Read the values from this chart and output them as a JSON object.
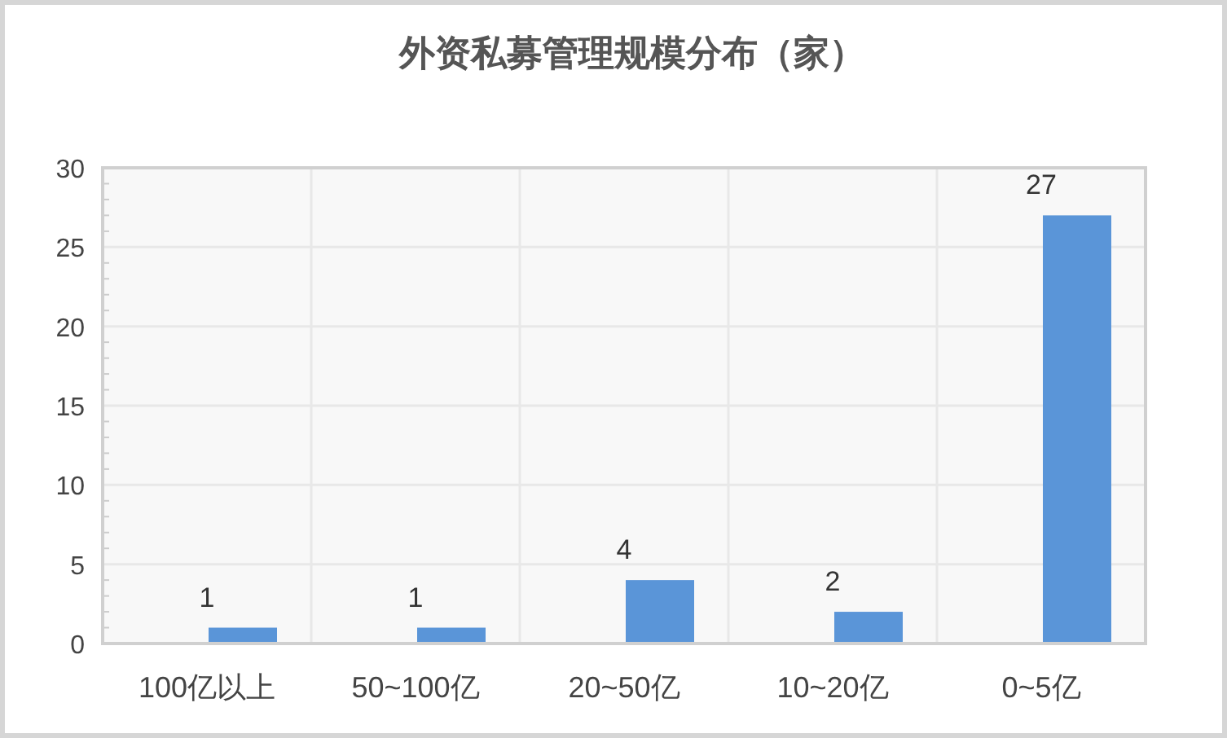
{
  "chart_data": {
    "type": "bar",
    "title": "外资私募管理规模分布（家）",
    "categories": [
      "100亿以上",
      "50~100亿",
      "20~50亿",
      "10~20亿",
      "0~5亿"
    ],
    "values": [
      1,
      1,
      4,
      2,
      27
    ],
    "color": "#5a95d8",
    "ylim": [
      0,
      30
    ],
    "yticks": [
      0,
      5,
      10,
      15,
      20,
      25,
      30
    ],
    "grid": true,
    "data_labels": true
  }
}
